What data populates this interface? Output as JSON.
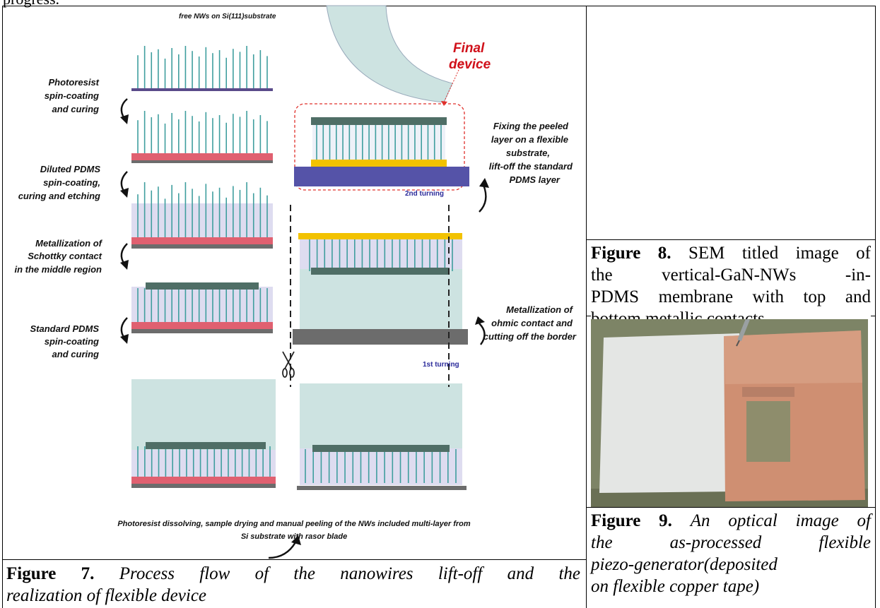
{
  "page": {
    "top_fragment": "progress."
  },
  "figure7": {
    "diagram": {
      "header_label": "free NWs on Si(111)substrate",
      "final_device_label_line1": "Final",
      "final_device_label_line2": "device",
      "left_steps": [
        {
          "line1": "Photoresist",
          "line2": "spin-coating",
          "line3": "and curing"
        },
        {
          "line1": "Diluted PDMS",
          "line2": "spin-coating,",
          "line3": "curing and etching"
        },
        {
          "line1": "Metallization of",
          "line2": "Schottky contact",
          "line3": "in the middle region"
        },
        {
          "line1": "Standard PDMS",
          "line2": "spin-coating",
          "line3": "and curing"
        }
      ],
      "right_steps": [
        {
          "line1": "Fixing the peeled",
          "line2": "layer on a flexible",
          "line3": "substrate,",
          "line4": "lift-off the standard",
          "line5": "PDMS layer"
        },
        {
          "line1": "Metallization of",
          "line2": "ohmic contact and",
          "line3": "cutting off the border"
        }
      ],
      "turning_labels": {
        "first": "1st turning",
        "second": "2nd turning"
      },
      "bottom_step": {
        "line1": "Photoresist dissolving, sample drying and  manual peeling of the NWs included multi-layer from",
        "line2": "Si substrate with rasor blade"
      },
      "colors": {
        "nanowire": "#3f9e9e",
        "substrate": "#6c6c6c",
        "photoresist": "#e06070",
        "diluted_pdms": "#dedcf0",
        "standard_pdms": "#cde3e1",
        "metal": "#4f6e66",
        "gold": "#f2c200",
        "flexible_substrate": "#5553a8",
        "final_box": "#e0302b"
      }
    },
    "caption": {
      "label": "Figure 7.",
      "line1_rest": "Process flow of the nanowires lift-off and the",
      "line2": "realization of flexible device"
    }
  },
  "figure8": {
    "caption": {
      "label": "Figure 8.",
      "line1_rest": "SEM titled image of",
      "line2": "the vertical-GaN-NWs -in-",
      "line3": "PDMS membrane with top and",
      "line4": "bottom metallic contacts."
    }
  },
  "figure9": {
    "photo": {
      "colors": {
        "paper": "#e6e8e6",
        "copper": "#cf8f72",
        "background": "#7b8362"
      }
    },
    "caption": {
      "label": "Figure 9.",
      "line1_rest": "An optical image of",
      "line2": "the as-processed flexible",
      "line3": "piezo-generator(deposited",
      "line4": "on flexible copper tape)"
    }
  }
}
